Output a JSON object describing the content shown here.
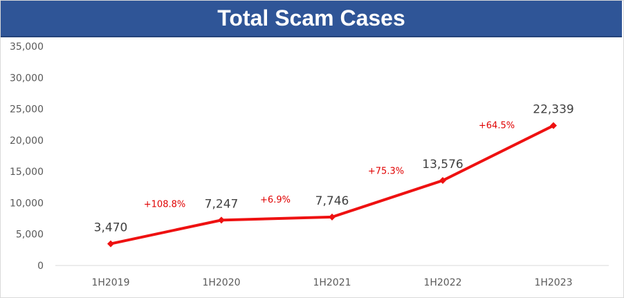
{
  "chart_data": {
    "type": "line",
    "title": "Total Scam Cases",
    "categories": [
      "1H2019",
      "1H2020",
      "1H2021",
      "1H2022",
      "1H2023"
    ],
    "series": [
      {
        "values": [
          3470,
          7247,
          7746,
          13576,
          22339
        ]
      }
    ],
    "data_labels": [
      "3,470",
      "7,247",
      "7,746",
      "13,576",
      "22,339"
    ],
    "annotations": [
      "+108.8%",
      "+6.9%",
      "+75.3%",
      "+64.5%"
    ],
    "ylim": [
      0,
      35000
    ],
    "yticks": [
      "0",
      "5,000",
      "10,000",
      "15,000",
      "20,000",
      "25,000",
      "30,000",
      "35,000"
    ],
    "grid": false,
    "legend": "none",
    "colors": {
      "line": "#ee1111",
      "title_bar": "#2f5597",
      "annotation": "#e00000"
    }
  }
}
